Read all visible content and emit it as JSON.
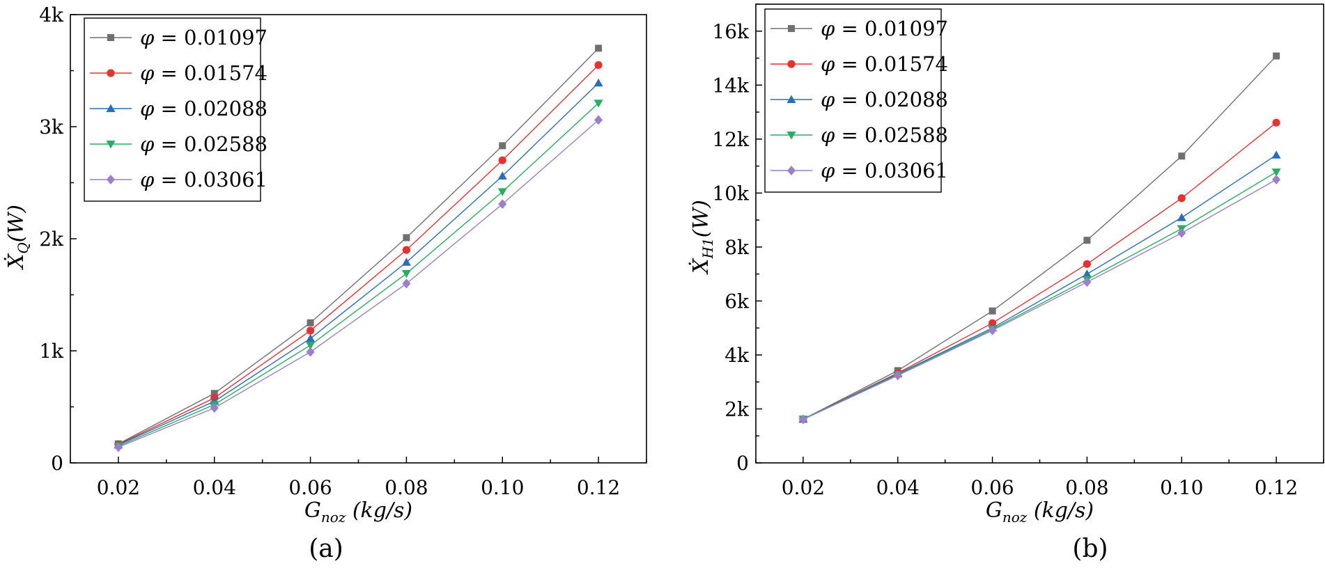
{
  "chart_data": [
    {
      "type": "line",
      "panel_label": "(a)",
      "x": [
        0.02,
        0.04,
        0.06,
        0.08,
        0.1,
        0.12
      ],
      "x_tick_labels": [
        "0.02",
        "0.04",
        "0.06",
        "0.08",
        "0.10",
        "0.12"
      ],
      "xlim": [
        0.01,
        0.13
      ],
      "xlabel": {
        "main": "G",
        "sub": "noz",
        "unit": " (kg/s)"
      },
      "ylabel": {
        "main": "Ẋ",
        "sub": "Q",
        "unit": "(W)"
      },
      "y_ticks": [
        0,
        1000,
        2000,
        3000,
        4000
      ],
      "y_tick_labels": [
        "0",
        "1k",
        "2k",
        "3k",
        "4k"
      ],
      "ylim": [
        0,
        4000
      ],
      "legend_position": "top-left",
      "series": [
        {
          "name": "φ = 0.01097",
          "symbol": "φ",
          "value_label": " = 0.01097",
          "color": "#707070",
          "marker": "square",
          "values": [
            170,
            620,
            1250,
            2010,
            2830,
            3700
          ]
        },
        {
          "name": "φ = 0.01574",
          "symbol": "φ",
          "value_label": " = 0.01574",
          "color": "#e8312f",
          "marker": "circle",
          "values": [
            165,
            580,
            1180,
            1900,
            2700,
            3550
          ]
        },
        {
          "name": "φ = 0.02088",
          "symbol": "φ",
          "value_label": " = 0.02088",
          "color": "#2a6ebb",
          "marker": "triangle-up",
          "values": [
            160,
            550,
            1110,
            1790,
            2560,
            3390
          ]
        },
        {
          "name": "φ = 0.02588",
          "symbol": "φ",
          "value_label": " = 0.02588",
          "color": "#27ae60",
          "marker": "triangle-down",
          "values": [
            150,
            520,
            1050,
            1690,
            2420,
            3210
          ]
        },
        {
          "name": "φ = 0.03061",
          "symbol": "φ",
          "value_label": " = 0.03061",
          "color": "#9b7fc9",
          "marker": "diamond",
          "values": [
            140,
            490,
            990,
            1600,
            2310,
            3060
          ]
        }
      ]
    },
    {
      "type": "line",
      "panel_label": "(b)",
      "x": [
        0.02,
        0.04,
        0.06,
        0.08,
        0.1,
        0.12
      ],
      "x_tick_labels": [
        "0.02",
        "0.04",
        "0.06",
        "0.08",
        "0.10",
        "0.12"
      ],
      "xlim": [
        0.01,
        0.13
      ],
      "xlabel": {
        "main": "G",
        "sub": "noz",
        "unit": " (kg/s)"
      },
      "ylabel": {
        "main": "Ẋ",
        "sub": "H1",
        "unit": "(W)"
      },
      "y_ticks": [
        0,
        2000,
        4000,
        6000,
        8000,
        10000,
        12000,
        14000,
        16000
      ],
      "y_tick_labels": [
        "0",
        "2k",
        "4k",
        "6k",
        "8k",
        "10k",
        "12k",
        "14k",
        "16k"
      ],
      "ylim": [
        0,
        17000
      ],
      "legend_position": "top-left",
      "series": [
        {
          "name": "φ = 0.01097",
          "symbol": "φ",
          "value_label": " = 0.01097",
          "color": "#707070",
          "marker": "square",
          "values": [
            1620,
            3420,
            5630,
            8250,
            11370,
            15080
          ]
        },
        {
          "name": "φ = 0.01574",
          "symbol": "φ",
          "value_label": " = 0.01574",
          "color": "#e8312f",
          "marker": "circle",
          "values": [
            1620,
            3330,
            5180,
            7370,
            9810,
            12610
          ]
        },
        {
          "name": "φ = 0.02088",
          "symbol": "φ",
          "value_label": " = 0.02088",
          "color": "#2a6ebb",
          "marker": "triangle-up",
          "values": [
            1620,
            3300,
            5000,
            7000,
            9090,
            11410
          ]
        },
        {
          "name": "φ = 0.02588",
          "symbol": "φ",
          "value_label": " = 0.02588",
          "color": "#27ae60",
          "marker": "triangle-down",
          "values": [
            1620,
            3270,
            4950,
            6800,
            8680,
            10780
          ]
        },
        {
          "name": "φ = 0.03061",
          "symbol": "φ",
          "value_label": " = 0.03061",
          "color": "#9b7fc9",
          "marker": "diamond",
          "values": [
            1610,
            3240,
            4910,
            6700,
            8520,
            10500
          ]
        }
      ]
    }
  ]
}
